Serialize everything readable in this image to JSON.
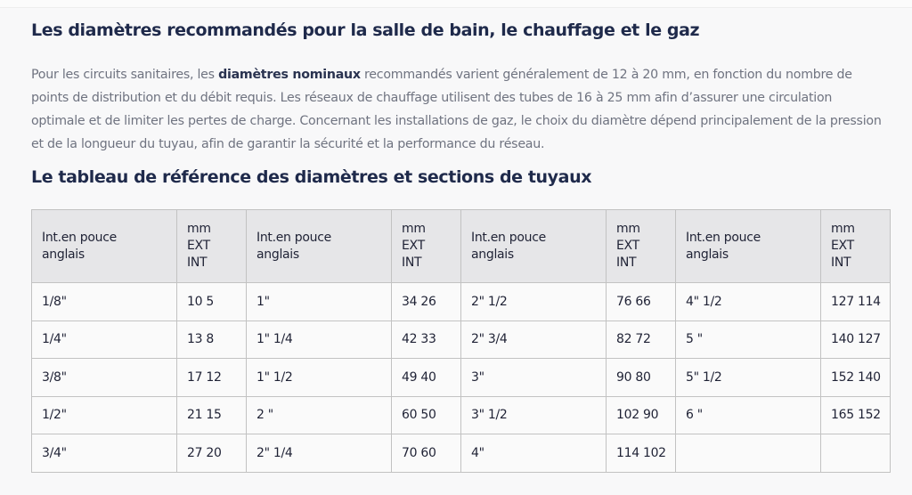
{
  "heading1": "Les diamètres recommandés pour la salle de bain, le chauffage et le gaz",
  "paragraph": {
    "before": "Pour les circuits sanitaires, les ",
    "bold": "diamètres nominaux",
    "after": " recommandés varient généralement de 12 à 20 mm, en fonction du nombre de points de distribution et du débit requis. Les réseaux de chauffage utilisent des tubes de 16 à 25 mm afin d’assurer une circulation optimale et de limiter les pertes de charge. Concernant les installations de gaz, le choix du diamètre dépend principalement de la pression et de la longueur du tuyau, afin de garantir la sécurité et la performance du réseau."
  },
  "heading2": "Le tableau de référence des diamètres et sections de tuyaux",
  "table": {
    "headers": [
      [
        "Int.en pouce",
        "anglais"
      ],
      [
        "mm",
        "EXT",
        "INT"
      ],
      [
        "Int.en pouce",
        "anglais"
      ],
      [
        "mm",
        "EXT",
        "INT"
      ],
      [
        "Int.en pouce",
        "anglais"
      ],
      [
        "mm",
        "EXT",
        "INT"
      ],
      [
        "Int.en pouce",
        "anglais"
      ],
      [
        "mm",
        "EXT",
        "INT"
      ]
    ],
    "rows": [
      [
        "1/8\"",
        "10 5",
        "1\"",
        "34 26",
        "2\" 1/2",
        "76 66",
        "4\" 1/2",
        "127 114"
      ],
      [
        "1/4\"",
        "13 8",
        "1\" 1/4",
        "42 33",
        "2\" 3/4",
        "82 72",
        "5 \"",
        "140 127"
      ],
      [
        "3/8\"",
        "17 12",
        "1\" 1/2",
        "49 40",
        "3\"",
        "90 80",
        "5\" 1/2",
        "152 140"
      ],
      [
        "1/2\"",
        "21 15",
        "2 \"",
        "60 50",
        "3\" 1/2",
        "102 90",
        "6 \"",
        "165 152"
      ],
      [
        "3/4\"",
        "27 20",
        "2\" 1/4",
        "70 60",
        "4\"",
        "114 102",
        "",
        ""
      ]
    ]
  }
}
